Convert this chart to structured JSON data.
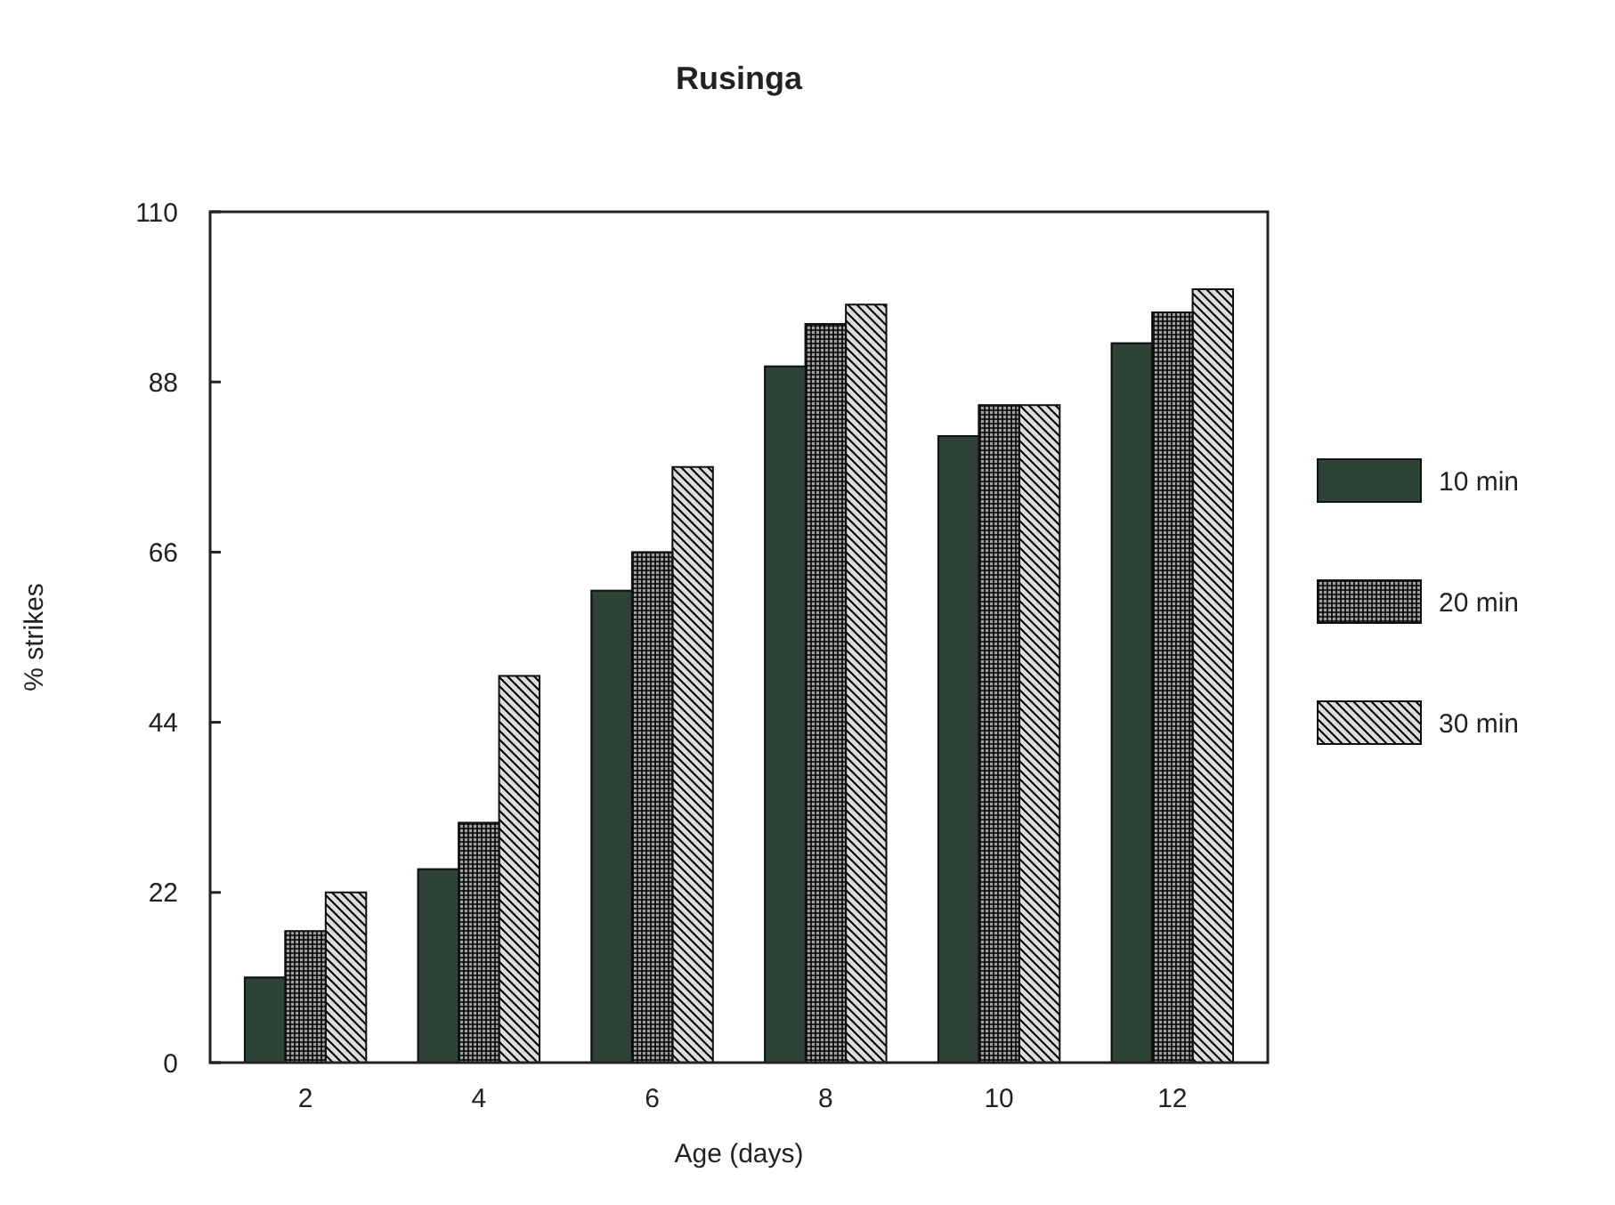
{
  "chart_data": {
    "type": "bar",
    "title": "Rusinga",
    "xlabel": "Age (days)",
    "ylabel": "% strikes",
    "categories": [
      "2",
      "4",
      "6",
      "8",
      "10",
      "12"
    ],
    "series": [
      {
        "name": "10 min",
        "color": "#2e4338",
        "values": [
          11,
          25,
          61,
          90,
          81,
          93
        ]
      },
      {
        "name": "20 min",
        "color": "#a0a0a0",
        "values": [
          17,
          31,
          66,
          95.5,
          85,
          97
        ]
      },
      {
        "name": "30 min",
        "color": "#dcdcdc",
        "values": [
          22,
          50,
          77,
          98,
          85,
          100
        ]
      }
    ],
    "ylim": [
      0,
      110
    ],
    "yticks": [
      0,
      22,
      44,
      66,
      88,
      110
    ],
    "grid": false,
    "legend": "right"
  }
}
